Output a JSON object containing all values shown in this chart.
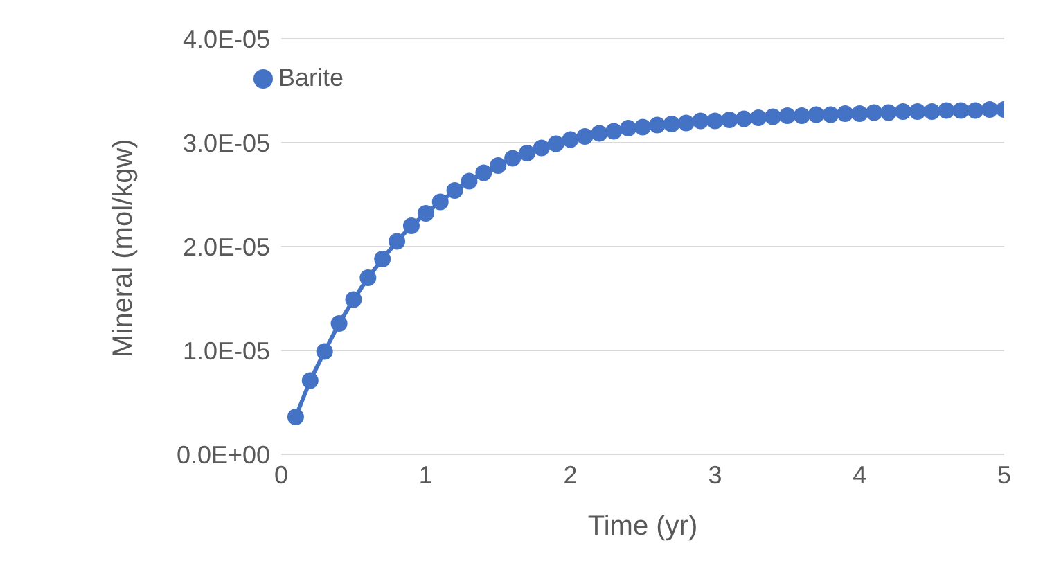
{
  "chart_data": {
    "type": "line",
    "xlabel": "Time (yr)",
    "ylabel": "Mineral (mol/kgw)",
    "x": [
      0.1,
      0.2,
      0.3,
      0.4,
      0.5,
      0.6,
      0.7,
      0.8,
      0.9,
      1.0,
      1.1,
      1.2,
      1.3,
      1.4,
      1.5,
      1.6,
      1.7,
      1.8,
      1.9,
      2.0,
      2.1,
      2.2,
      2.3,
      2.4,
      2.5,
      2.6,
      2.7,
      2.8,
      2.9,
      3.0,
      3.1,
      3.2,
      3.3,
      3.4,
      3.5,
      3.6,
      3.7,
      3.8,
      3.9,
      4.0,
      4.1,
      4.2,
      4.3,
      4.4,
      4.5,
      4.6,
      4.7,
      4.8,
      4.9,
      5.0
    ],
    "series": [
      {
        "name": "Barite",
        "color": "#4472c4",
        "values": [
          3.6e-06,
          7.1e-06,
          9.9e-06,
          1.26e-05,
          1.49e-05,
          1.7e-05,
          1.88e-05,
          2.05e-05,
          2.2e-05,
          2.32e-05,
          2.43e-05,
          2.54e-05,
          2.63e-05,
          2.71e-05,
          2.78e-05,
          2.85e-05,
          2.9e-05,
          2.95e-05,
          2.99e-05,
          3.03e-05,
          3.06e-05,
          3.09e-05,
          3.11e-05,
          3.14e-05,
          3.15e-05,
          3.17e-05,
          3.18e-05,
          3.19e-05,
          3.21e-05,
          3.21e-05,
          3.22e-05,
          3.23e-05,
          3.24e-05,
          3.25e-05,
          3.26e-05,
          3.26e-05,
          3.27e-05,
          3.27e-05,
          3.28e-05,
          3.28e-05,
          3.29e-05,
          3.29e-05,
          3.3e-05,
          3.3e-05,
          3.3e-05,
          3.31e-05,
          3.31e-05,
          3.31e-05,
          3.32e-05,
          3.32e-05
        ]
      }
    ],
    "xlim": [
      0,
      5
    ],
    "xticks": [
      0,
      1,
      2,
      3,
      4,
      5
    ],
    "ylim": [
      0,
      4e-05
    ],
    "yticks": [
      {
        "value": 0,
        "label": "0.0E+00"
      },
      {
        "value": 1e-05,
        "label": "1.0E-05"
      },
      {
        "value": 2e-05,
        "label": "2.0E-05"
      },
      {
        "value": 3e-05,
        "label": "3.0E-05"
      },
      {
        "value": 4e-05,
        "label": "4.0E-05"
      }
    ],
    "grid": "y",
    "legend": "top left",
    "marker": "circle",
    "line_style": "solid"
  }
}
